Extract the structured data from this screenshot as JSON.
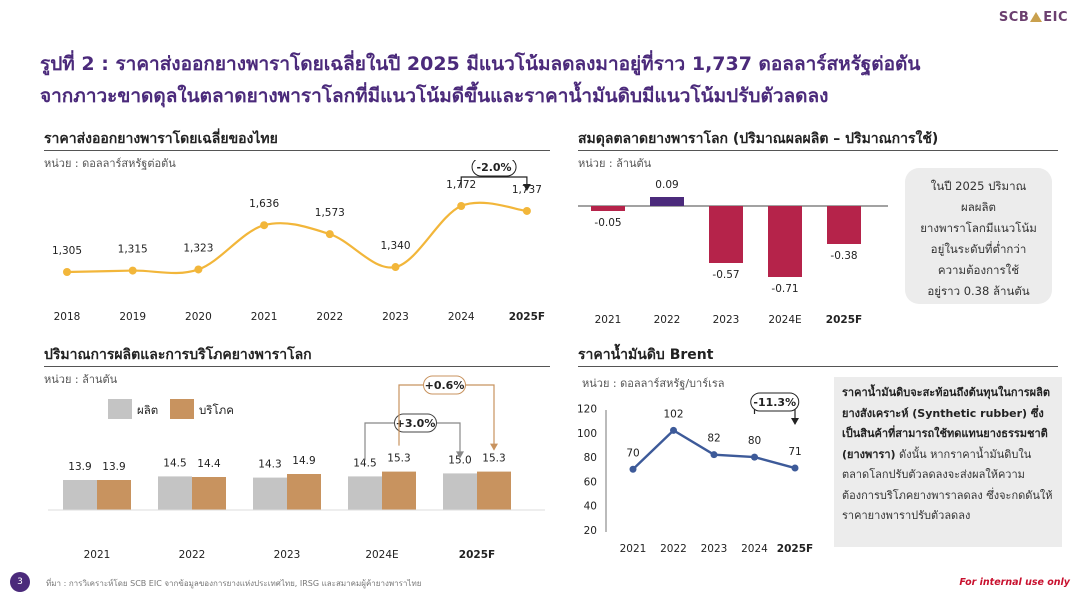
{
  "brand": "SCB EIC",
  "headline": {
    "line1": "รูปที่ 2 : ราคาส่งออกยางพาราโดยเฉลี่ยในปี 2025 มีแนวโน้มลดลงมาอยู่ที่ราว 1,737 ดอลลาร์สหรัฐต่อตัน",
    "line2": "จากภาวะขาดดุลในตลาดยางพาราโลกที่มีแนวโน้มดีขึ้นและราคาน้ำมันดิบมีแนวโน้มปรับตัวลดลง"
  },
  "panels": {
    "export_price": {
      "title": "ราคาส่งออกยางพาราโดยเฉลี่ยของไทย",
      "unit": "หน่วย : ดอลลาร์สหรัฐต่อตัน",
      "change_label": "-2.0%"
    },
    "balance": {
      "title": "สมดุลตลาดยางพาราโลก (ปริมาณผลผลิต – ปริมาณการใช้)",
      "unit": "หน่วย : ล้านตัน",
      "note_lines": [
        "ในปี 2025 ปริมาณผลผลิต",
        "ยางพาราโลกมีแนวโน้ม",
        "อยู่ในระดับที่ต่ำกว่า",
        "ความต้องการใช้",
        "อยู่ราว 0.38 ล้านตัน"
      ]
    },
    "production": {
      "title": "ปริมาณการผลิตและการบริโภคยางพาราโลก",
      "unit": "หน่วย : ล้านตัน",
      "change_label_prod": "+3.0%",
      "change_label_cons": "+0.6%"
    },
    "brent": {
      "title": "ราคาน้ำมันดิบ Brent",
      "unit": "หน่วย : ดอลลาร์สหรัฐ/บาร์เรล",
      "change_label": "-11.3%",
      "note_bold": "ราคาน้ำมันดิบจะสะท้อนถึงต้นทุนในการผลิตยางสังเคราะห์ (Synthetic rubber) ซึ่งเป็นสินค้าที่สามารถใช้ทดแทนยางธรรมชาติ (ยางพารา)",
      "note_rest": " ดังนั้น หากราคาน้ำมันดิบในตลาดโลกปรับตัวลดลงจะส่งผลให้ความต้องการบริโภคยางพาราลดลง ซึ่งจะกดดันให้ราคายางพาราปรับตัวลดลง"
    }
  },
  "footer": {
    "page": "3",
    "source": "ที่มา : การวิเคราะห์โดย SCB EIC จากข้อมูลของการยางแห่งประเทศไทย, IRSG และสมาคมผู้ค้ายางพาราไทย",
    "internal": "For internal use only"
  },
  "colors": {
    "line_orange": "#f2b63a",
    "bar_red": "#b5234a",
    "bar_purple": "#4b2a7b",
    "bar_grey": "#c4c4c4",
    "bar_tan": "#c8935f",
    "line_blue": "#3d5a99"
  },
  "chart_data": [
    {
      "type": "line",
      "categories": [
        "2018",
        "2019",
        "2020",
        "2021",
        "2022",
        "2023",
        "2024",
        "2025F"
      ],
      "values": [
        1305,
        1315,
        1323,
        1636,
        1573,
        1340,
        1772,
        1737
      ],
      "labels": [
        "1,305",
        "1,315",
        "1,323",
        "1,636",
        "1,573",
        "1,340",
        "1,772",
        "1,737"
      ],
      "title": "ราคาส่งออกยางพาราโดยเฉลี่ยของไทย",
      "ylim": [
        1100,
        1900
      ]
    },
    {
      "type": "bar",
      "categories": [
        "2021",
        "2022",
        "2023",
        "2024E",
        "2025F"
      ],
      "values": [
        -0.05,
        0.09,
        -0.57,
        -0.71,
        -0.38
      ],
      "labels": [
        "-0.05",
        "0.09",
        "-0.57",
        "-0.71",
        "-0.38"
      ],
      "title": "สมดุลตลาดยางพาราโลก (ปริมาณผลผลิต – ปริมาณการใช้)",
      "ylim": [
        -0.75,
        0.12
      ]
    },
    {
      "type": "bar",
      "categories": [
        "2021",
        "2022",
        "2023",
        "2024E",
        "2025F"
      ],
      "series": [
        {
          "name": "ผลิต",
          "values": [
            13.9,
            14.5,
            14.3,
            14.5,
            15.0
          ],
          "labels": [
            "13.9",
            "14.5",
            "14.3",
            "14.5",
            "15.0"
          ]
        },
        {
          "name": "บริโภค",
          "values": [
            13.9,
            14.4,
            14.9,
            15.3,
            15.3
          ],
          "labels": [
            "13.9",
            "14.4",
            "14.9",
            "15.3",
            "15.3"
          ]
        }
      ],
      "title": "ปริมาณการผลิตและการบริโภคยางพาราโลก",
      "ylim": [
        0,
        16
      ]
    },
    {
      "type": "line",
      "categories": [
        "2021",
        "2022",
        "2023",
        "2024",
        "2025F"
      ],
      "values": [
        70,
        102,
        82,
        80,
        71
      ],
      "labels": [
        "70",
        "102",
        "82",
        "80",
        "71"
      ],
      "yticks": [
        "20",
        "40",
        "60",
        "80",
        "100",
        "120"
      ],
      "title": "ราคาน้ำมันดิบ Brent",
      "ylim": [
        20,
        120
      ]
    }
  ]
}
